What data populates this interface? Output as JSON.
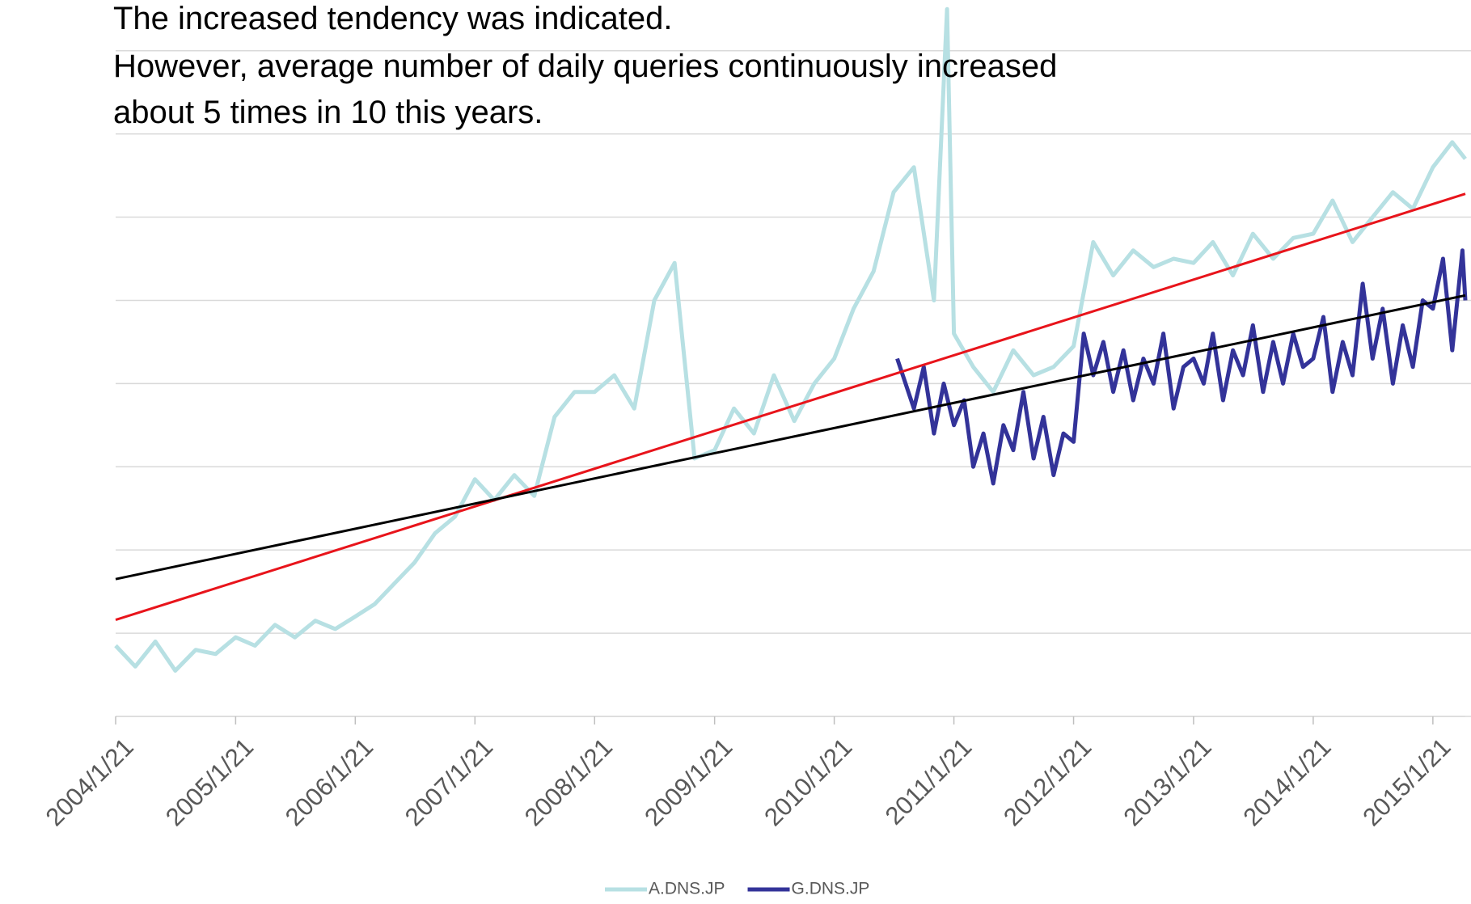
{
  "chart_data": {
    "type": "line",
    "annotation": [
      "The increased tendency was indicated.",
      "However, average number of daily queries continuously increased",
      "about 5 times in 10 this years."
    ],
    "xlim": [
      "2004/1/21",
      "2015/4/30"
    ],
    "xticks": [
      "2004/1/21",
      "2005/1/21",
      "2006/1/21",
      "2007/1/21",
      "2008/1/21",
      "2009/1/21",
      "2010/1/21",
      "2011/1/21",
      "2012/1/21",
      "2013/1/21",
      "2014/1/21",
      "2015/1/21"
    ],
    "ylim": [
      0,
      8.6
    ],
    "yticks": [
      0,
      1,
      2,
      3,
      4,
      5,
      6,
      7,
      8
    ],
    "grid": true,
    "legend": "bottom",
    "series": [
      {
        "name": "A.DNS.JP",
        "color": "#b7e0e3",
        "x": [
          "2004/1/21",
          "2004/3/21",
          "2004/5/21",
          "2004/7/21",
          "2004/9/21",
          "2004/11/21",
          "2005/1/21",
          "2005/3/21",
          "2005/5/21",
          "2005/7/21",
          "2005/9/21",
          "2005/11/21",
          "2006/1/21",
          "2006/3/21",
          "2006/5/21",
          "2006/7/21",
          "2006/9/21",
          "2006/11/21",
          "2007/1/21",
          "2007/3/21",
          "2007/5/21",
          "2007/7/21",
          "2007/9/21",
          "2007/11/21",
          "2008/1/21",
          "2008/3/21",
          "2008/5/21",
          "2008/7/21",
          "2008/9/21",
          "2008/11/21",
          "2009/1/21",
          "2009/3/21",
          "2009/5/21",
          "2009/7/21",
          "2009/9/21",
          "2009/11/21",
          "2010/1/21",
          "2010/3/21",
          "2010/5/21",
          "2010/7/21",
          "2010/9/21",
          "2010/11/21",
          "2010/12/31",
          "2011/1/21",
          "2011/3/21",
          "2011/5/21",
          "2011/7/21",
          "2011/9/21",
          "2011/11/21",
          "2012/1/21",
          "2012/3/21",
          "2012/5/21",
          "2012/7/21",
          "2012/9/21",
          "2012/11/21",
          "2013/1/21",
          "2013/3/21",
          "2013/5/21",
          "2013/7/21",
          "2013/9/21",
          "2013/11/21",
          "2014/1/21",
          "2014/3/21",
          "2014/5/21",
          "2014/7/21",
          "2014/9/21",
          "2014/11/21",
          "2015/1/21",
          "2015/3/21",
          "2015/4/30"
        ],
        "values": [
          0.85,
          0.6,
          0.9,
          0.55,
          0.8,
          0.75,
          0.95,
          0.85,
          1.1,
          0.95,
          1.15,
          1.05,
          1.2,
          1.35,
          1.6,
          1.85,
          2.2,
          2.4,
          2.85,
          2.6,
          2.9,
          2.65,
          3.6,
          3.9,
          3.9,
          4.1,
          3.7,
          5.0,
          5.45,
          3.1,
          3.2,
          3.7,
          3.4,
          4.1,
          3.55,
          4.0,
          4.3,
          4.9,
          5.35,
          6.3,
          6.6,
          5.0,
          8.5,
          4.6,
          4.2,
          3.9,
          4.4,
          4.1,
          4.2,
          4.45,
          5.7,
          5.3,
          5.6,
          5.4,
          5.5,
          5.45,
          5.7,
          5.3,
          5.8,
          5.5,
          5.75,
          5.8,
          6.2,
          5.7,
          6.0,
          6.3,
          6.1,
          6.6,
          6.9,
          6.7
        ]
      },
      {
        "name": "G.DNS.JP",
        "color": "#333399",
        "x": [
          "2010/8/1",
          "2010/9/21",
          "2010/10/21",
          "2010/11/21",
          "2010/12/21",
          "2011/1/21",
          "2011/2/21",
          "2011/3/21",
          "2011/4/21",
          "2011/5/21",
          "2011/6/21",
          "2011/7/21",
          "2011/8/21",
          "2011/9/21",
          "2011/10/21",
          "2011/11/21",
          "2011/12/21",
          "2012/1/21",
          "2012/2/21",
          "2012/3/21",
          "2012/4/21",
          "2012/5/21",
          "2012/6/21",
          "2012/7/21",
          "2012/8/21",
          "2012/9/21",
          "2012/10/21",
          "2012/11/21",
          "2012/12/21",
          "2013/1/21",
          "2013/2/21",
          "2013/3/21",
          "2013/4/21",
          "2013/5/21",
          "2013/6/21",
          "2013/7/21",
          "2013/8/21",
          "2013/9/21",
          "2013/10/21",
          "2013/11/21",
          "2013/12/21",
          "2014/1/21",
          "2014/2/21",
          "2014/3/21",
          "2014/4/21",
          "2014/5/21",
          "2014/6/21",
          "2014/7/21",
          "2014/8/21",
          "2014/9/21",
          "2014/10/21",
          "2014/11/21",
          "2014/12/21",
          "2015/1/21",
          "2015/2/21",
          "2015/3/21",
          "2015/4/21",
          "2015/4/30"
        ],
        "values": [
          4.3,
          3.7,
          4.2,
          3.4,
          4.0,
          3.5,
          3.8,
          3.0,
          3.4,
          2.8,
          3.5,
          3.2,
          3.9,
          3.1,
          3.6,
          2.9,
          3.4,
          3.3,
          4.6,
          4.1,
          4.5,
          3.9,
          4.4,
          3.8,
          4.3,
          4.0,
          4.6,
          3.7,
          4.2,
          4.3,
          4.0,
          4.6,
          3.8,
          4.4,
          4.1,
          4.7,
          3.9,
          4.5,
          4.0,
          4.6,
          4.2,
          4.3,
          4.8,
          3.9,
          4.5,
          4.1,
          5.2,
          4.3,
          4.9,
          4.0,
          4.7,
          4.2,
          5.0,
          4.9,
          5.5,
          4.4,
          5.6,
          5.0
        ]
      }
    ],
    "trend_lines": [
      {
        "color": "#e8141b",
        "x": [
          "2004/1/21",
          "2015/4/30"
        ],
        "values": [
          1.16,
          6.28
        ]
      },
      {
        "color": "#000000",
        "x": [
          "2004/1/21",
          "2015/4/30"
        ],
        "values": [
          1.65,
          5.06
        ]
      }
    ]
  }
}
